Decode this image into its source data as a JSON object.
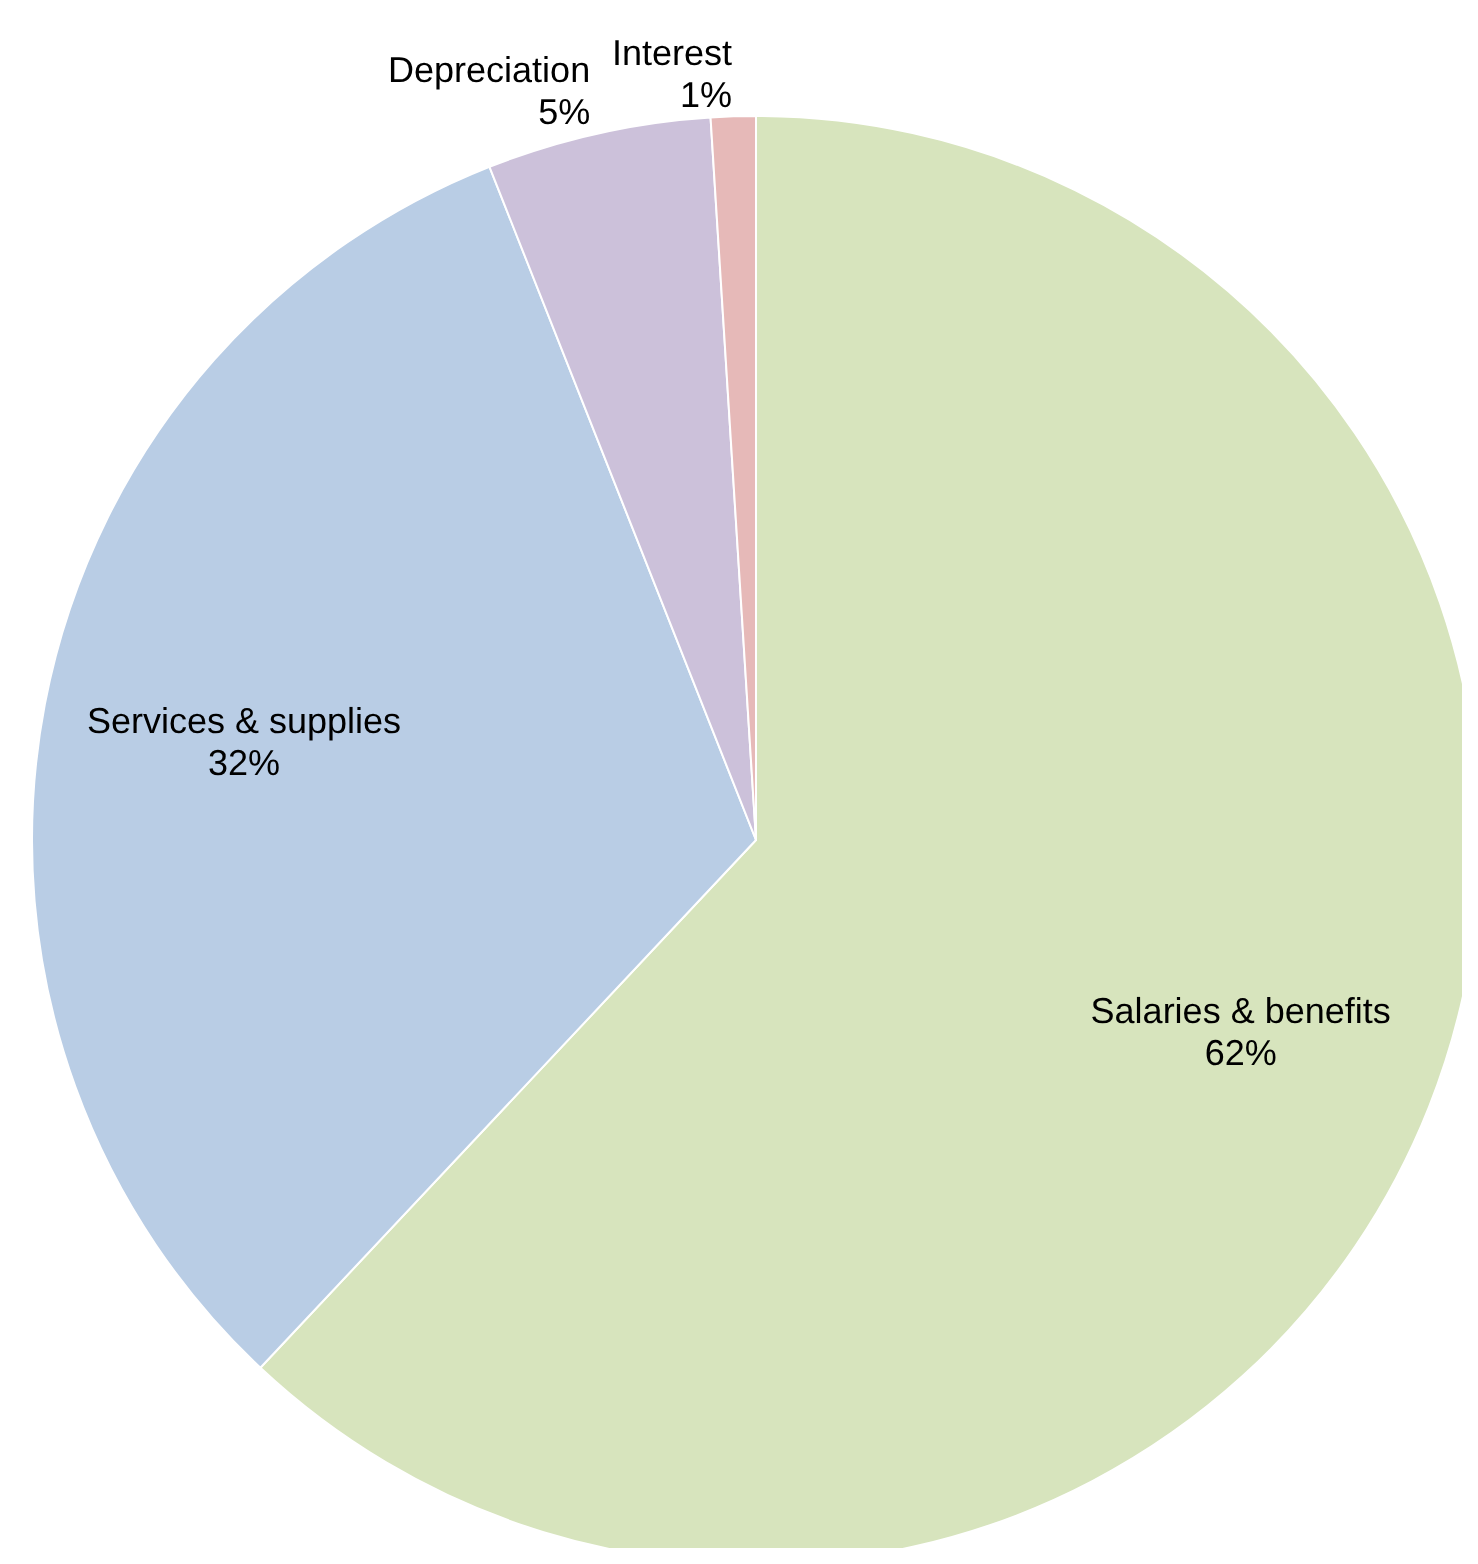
{
  "chart_data": {
    "type": "pie",
    "categories": [
      "Salaries & benefits",
      "Services & supplies",
      "Depreciation",
      "Interest"
    ],
    "values": [
      62,
      32,
      5,
      1
    ],
    "value_labels": [
      "62%",
      "32%",
      "5%",
      "1%"
    ],
    "colors": [
      "#d7e4bd",
      "#b9cde5",
      "#ccc1da",
      "#e6b9b8"
    ],
    "legend": false
  }
}
